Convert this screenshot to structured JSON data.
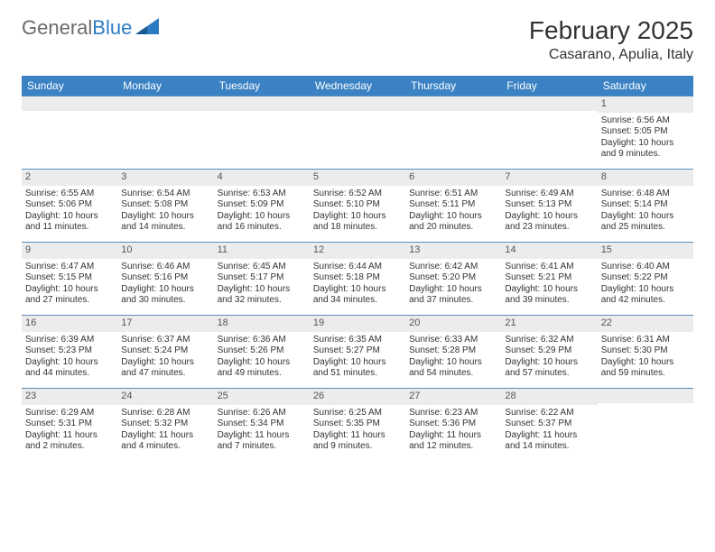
{
  "brand": {
    "part1": "General",
    "part2": "Blue"
  },
  "title": "February 2025",
  "location": "Casarano, Apulia, Italy",
  "colors": {
    "header_bg": "#3a82c4",
    "header_text": "#ffffff",
    "daynum_bg": "#ececec",
    "week_border": "#5b8fb8",
    "text": "#333333",
    "logo_gray": "#6b6b6b",
    "logo_blue": "#2b7bc3",
    "background": "#ffffff"
  },
  "typography": {
    "title_fontsize": 28,
    "location_fontsize": 16,
    "dayhead_fontsize": 12,
    "cell_fontsize": 10
  },
  "day_headers": [
    "Sunday",
    "Monday",
    "Tuesday",
    "Wednesday",
    "Thursday",
    "Friday",
    "Saturday"
  ],
  "weeks": [
    [
      {
        "n": "",
        "sunrise": "",
        "sunset": "",
        "daylight": ""
      },
      {
        "n": "",
        "sunrise": "",
        "sunset": "",
        "daylight": ""
      },
      {
        "n": "",
        "sunrise": "",
        "sunset": "",
        "daylight": ""
      },
      {
        "n": "",
        "sunrise": "",
        "sunset": "",
        "daylight": ""
      },
      {
        "n": "",
        "sunrise": "",
        "sunset": "",
        "daylight": ""
      },
      {
        "n": "",
        "sunrise": "",
        "sunset": "",
        "daylight": ""
      },
      {
        "n": "1",
        "sunrise": "Sunrise: 6:56 AM",
        "sunset": "Sunset: 5:05 PM",
        "daylight": "Daylight: 10 hours and 9 minutes."
      }
    ],
    [
      {
        "n": "2",
        "sunrise": "Sunrise: 6:55 AM",
        "sunset": "Sunset: 5:06 PM",
        "daylight": "Daylight: 10 hours and 11 minutes."
      },
      {
        "n": "3",
        "sunrise": "Sunrise: 6:54 AM",
        "sunset": "Sunset: 5:08 PM",
        "daylight": "Daylight: 10 hours and 14 minutes."
      },
      {
        "n": "4",
        "sunrise": "Sunrise: 6:53 AM",
        "sunset": "Sunset: 5:09 PM",
        "daylight": "Daylight: 10 hours and 16 minutes."
      },
      {
        "n": "5",
        "sunrise": "Sunrise: 6:52 AM",
        "sunset": "Sunset: 5:10 PM",
        "daylight": "Daylight: 10 hours and 18 minutes."
      },
      {
        "n": "6",
        "sunrise": "Sunrise: 6:51 AM",
        "sunset": "Sunset: 5:11 PM",
        "daylight": "Daylight: 10 hours and 20 minutes."
      },
      {
        "n": "7",
        "sunrise": "Sunrise: 6:49 AM",
        "sunset": "Sunset: 5:13 PM",
        "daylight": "Daylight: 10 hours and 23 minutes."
      },
      {
        "n": "8",
        "sunrise": "Sunrise: 6:48 AM",
        "sunset": "Sunset: 5:14 PM",
        "daylight": "Daylight: 10 hours and 25 minutes."
      }
    ],
    [
      {
        "n": "9",
        "sunrise": "Sunrise: 6:47 AM",
        "sunset": "Sunset: 5:15 PM",
        "daylight": "Daylight: 10 hours and 27 minutes."
      },
      {
        "n": "10",
        "sunrise": "Sunrise: 6:46 AM",
        "sunset": "Sunset: 5:16 PM",
        "daylight": "Daylight: 10 hours and 30 minutes."
      },
      {
        "n": "11",
        "sunrise": "Sunrise: 6:45 AM",
        "sunset": "Sunset: 5:17 PM",
        "daylight": "Daylight: 10 hours and 32 minutes."
      },
      {
        "n": "12",
        "sunrise": "Sunrise: 6:44 AM",
        "sunset": "Sunset: 5:18 PM",
        "daylight": "Daylight: 10 hours and 34 minutes."
      },
      {
        "n": "13",
        "sunrise": "Sunrise: 6:42 AM",
        "sunset": "Sunset: 5:20 PM",
        "daylight": "Daylight: 10 hours and 37 minutes."
      },
      {
        "n": "14",
        "sunrise": "Sunrise: 6:41 AM",
        "sunset": "Sunset: 5:21 PM",
        "daylight": "Daylight: 10 hours and 39 minutes."
      },
      {
        "n": "15",
        "sunrise": "Sunrise: 6:40 AM",
        "sunset": "Sunset: 5:22 PM",
        "daylight": "Daylight: 10 hours and 42 minutes."
      }
    ],
    [
      {
        "n": "16",
        "sunrise": "Sunrise: 6:39 AM",
        "sunset": "Sunset: 5:23 PM",
        "daylight": "Daylight: 10 hours and 44 minutes."
      },
      {
        "n": "17",
        "sunrise": "Sunrise: 6:37 AM",
        "sunset": "Sunset: 5:24 PM",
        "daylight": "Daylight: 10 hours and 47 minutes."
      },
      {
        "n": "18",
        "sunrise": "Sunrise: 6:36 AM",
        "sunset": "Sunset: 5:26 PM",
        "daylight": "Daylight: 10 hours and 49 minutes."
      },
      {
        "n": "19",
        "sunrise": "Sunrise: 6:35 AM",
        "sunset": "Sunset: 5:27 PM",
        "daylight": "Daylight: 10 hours and 51 minutes."
      },
      {
        "n": "20",
        "sunrise": "Sunrise: 6:33 AM",
        "sunset": "Sunset: 5:28 PM",
        "daylight": "Daylight: 10 hours and 54 minutes."
      },
      {
        "n": "21",
        "sunrise": "Sunrise: 6:32 AM",
        "sunset": "Sunset: 5:29 PM",
        "daylight": "Daylight: 10 hours and 57 minutes."
      },
      {
        "n": "22",
        "sunrise": "Sunrise: 6:31 AM",
        "sunset": "Sunset: 5:30 PM",
        "daylight": "Daylight: 10 hours and 59 minutes."
      }
    ],
    [
      {
        "n": "23",
        "sunrise": "Sunrise: 6:29 AM",
        "sunset": "Sunset: 5:31 PM",
        "daylight": "Daylight: 11 hours and 2 minutes."
      },
      {
        "n": "24",
        "sunrise": "Sunrise: 6:28 AM",
        "sunset": "Sunset: 5:32 PM",
        "daylight": "Daylight: 11 hours and 4 minutes."
      },
      {
        "n": "25",
        "sunrise": "Sunrise: 6:26 AM",
        "sunset": "Sunset: 5:34 PM",
        "daylight": "Daylight: 11 hours and 7 minutes."
      },
      {
        "n": "26",
        "sunrise": "Sunrise: 6:25 AM",
        "sunset": "Sunset: 5:35 PM",
        "daylight": "Daylight: 11 hours and 9 minutes."
      },
      {
        "n": "27",
        "sunrise": "Sunrise: 6:23 AM",
        "sunset": "Sunset: 5:36 PM",
        "daylight": "Daylight: 11 hours and 12 minutes."
      },
      {
        "n": "28",
        "sunrise": "Sunrise: 6:22 AM",
        "sunset": "Sunset: 5:37 PM",
        "daylight": "Daylight: 11 hours and 14 minutes."
      },
      {
        "n": "",
        "sunrise": "",
        "sunset": "",
        "daylight": ""
      }
    ]
  ]
}
